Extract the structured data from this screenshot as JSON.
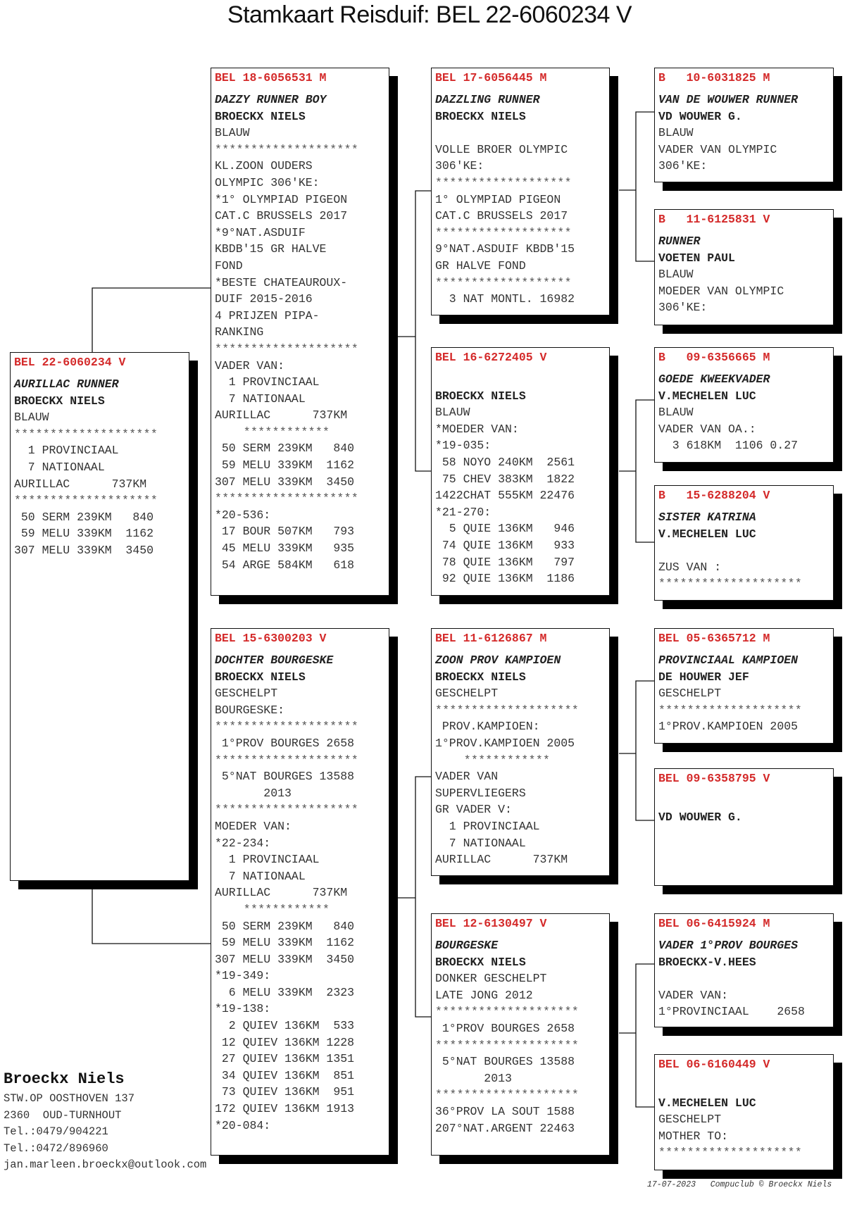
{
  "title": "Stamkaart Reisduif: BEL 22-6060234 V",
  "boxes": [
    {
      "ring": "BEL 22-6060234 V",
      "name": "AURILLAC RUNNER",
      "breeder": "BROECKX NIELS",
      "lines": [
        "BLAUW",
        "********************",
        "  1 PROVINCIAAL",
        "  7 NATIONAAL",
        "AURILLAC      737KM",
        "********************",
        " 50 SERM 239KM   840",
        " 59 MELU 339KM  1162",
        "307 MELU 339KM  3450"
      ]
    },
    {
      "ring": "BEL 18-6056531 M",
      "name": "DAZZY RUNNER BOY",
      "breeder": "BROECKX NIELS",
      "lines": [
        "BLAUW",
        "********************",
        "KL.ZOON OUDERS",
        "OLYMPIC 306'KE:",
        "*1° OLYMPIAD PIGEON",
        "CAT.C BRUSSELS 2017",
        "*9°NAT.ASDUIF",
        "KBDB'15 GR HALVE",
        "FOND",
        "*BESTE CHATEAUROUX-",
        "DUIF 2015-2016",
        "4 PRIJZEN PIPA-",
        "RANKING",
        "********************",
        "VADER VAN:",
        "  1 PROVINCIAAL",
        "  7 NATIONAAL",
        "AURILLAC      737KM",
        "    ************",
        " 50 SERM 239KM   840",
        " 59 MELU 339KM  1162",
        "307 MELU 339KM  3450",
        "********************",
        "*20-536:",
        " 17 BOUR 507KM   793",
        " 45 MELU 339KM   935",
        " 54 ARGE 584KM   618"
      ]
    },
    {
      "ring": "BEL 15-6300203 V",
      "name": "DOCHTER BOURGESKE",
      "breeder": "BROECKX NIELS",
      "lines": [
        "GESCHELPT",
        "BOURGESKE:",
        "********************",
        " 1°PROV BOURGES 2658",
        "********************",
        " 5°NAT BOURGES 13588",
        "       2013",
        "********************",
        "MOEDER VAN:",
        "*22-234:",
        "  1 PROVINCIAAL",
        "  7 NATIONAAL",
        "AURILLAC      737KM",
        "    ************",
        " 50 SERM 239KM   840",
        " 59 MELU 339KM  1162",
        "307 MELU 339KM  3450",
        "*19-349:",
        "  6 MELU 339KM  2323",
        "*19-138:",
        "  2 QUIEV 136KM  533",
        " 12 QUIEV 136KM 1228",
        " 27 QUIEV 136KM 1351",
        " 34 QUIEV 136KM  851",
        " 73 QUIEV 136KM  951",
        "172 QUIEV 136KM 1913",
        "*20-084:"
      ]
    },
    {
      "ring": "BEL 17-6056445 M",
      "name": "DAZZLING RUNNER",
      "breeder": "BROECKX NIELS",
      "lines": [
        "",
        "VOLLE BROER OLYMPIC",
        "306'KE:",
        "*******************",
        "1° OLYMPIAD PIGEON",
        "CAT.C BRUSSELS 2017",
        "*******************",
        "9°NAT.ASDUIF KBDB'15",
        "GR HALVE FOND",
        "*******************",
        "  3 NAT MONTL. 16982"
      ]
    },
    {
      "ring": "BEL 16-6272405 V",
      "name": "",
      "breeder": "BROECKX NIELS",
      "lines": [
        "BLAUW",
        "*MOEDER VAN:",
        "*19-035:",
        " 58 NOYO 240KM  2561",
        " 75 CHEV 383KM  1822",
        "1422CHAT 555KM 22476",
        "*21-270:",
        "  5 QUIE 136KM   946",
        " 74 QUIE 136KM   933",
        " 78 QUIE 136KM   797",
        " 92 QUIE 136KM  1186"
      ]
    },
    {
      "ring": "BEL 11-6126867 M",
      "name": "ZOON PROV KAMPIOEN",
      "breeder": "BROECKX NIELS",
      "lines": [
        "GESCHELPT",
        "********************",
        " PROV.KAMPIOEN:",
        "1°PROV.KAMPIOEN 2005",
        "    ************",
        "VADER VAN",
        "SUPERVLIEGERS",
        "GR VADER V:",
        "  1 PROVINCIAAL",
        "  7 NATIONAAL",
        "AURILLAC      737KM"
      ]
    },
    {
      "ring": "BEL 12-6130497 V",
      "name": "BOURGESKE",
      "breeder": "BROECKX NIELS",
      "lines": [
        "DONKER GESCHELPT",
        "LATE JONG 2012",
        "********************",
        " 1°PROV BOURGES 2658",
        "********************",
        " 5°NAT BOURGES 13588",
        "       2013",
        "********************",
        "36°PROV LA SOUT 1588",
        "207°NAT.ARGENT 22463"
      ]
    },
    {
      "ring": "B   10-6031825 M",
      "name": "VAN DE WOUWER RUNNER",
      "breeder": "VD WOUWER G.",
      "lines": [
        "BLAUW",
        "VADER VAN OLYMPIC",
        "306'KE:"
      ]
    },
    {
      "ring": "B   11-6125831 V",
      "name": "RUNNER",
      "breeder": "VOETEN PAUL",
      "lines": [
        "BLAUW",
        "MOEDER VAN OLYMPIC",
        "306'KE:"
      ]
    },
    {
      "ring": "B   09-6356665 M",
      "name": "GOEDE KWEEKVADER",
      "breeder": "V.MECHELEN LUC",
      "lines": [
        "BLAUW",
        "VADER VAN OA.:",
        "  3 618KM  1106 0.27"
      ]
    },
    {
      "ring": "B   15-6288204 V",
      "name": "SISTER KATRINA",
      "breeder": "V.MECHELEN LUC",
      "lines": [
        "",
        "ZUS VAN :",
        "********************"
      ]
    },
    {
      "ring": "BEL 05-6365712 M",
      "name": "PROVINCIAAL KAMPIOEN",
      "breeder": "DE HOUWER JEF",
      "lines": [
        "GESCHELPT",
        "********************",
        "1°PROV.KAMPIOEN 2005"
      ]
    },
    {
      "ring": "BEL 09-6358795 V",
      "name": "",
      "breeder": "VD WOUWER G.",
      "lines": []
    },
    {
      "ring": "BEL 06-6415924 M",
      "name": "VADER 1°PROV BOURGES",
      "breeder": "BROECKX-V.HEES",
      "lines": [
        "",
        "VADER VAN:",
        "1°PROVINCIAAL    2658"
      ]
    },
    {
      "ring": "BEL 06-6160449 V",
      "name": "",
      "breeder": "V.MECHELEN LUC",
      "lines": [
        "GESCHELPT",
        "MOTHER TO:",
        "********************"
      ]
    }
  ],
  "owner": {
    "name": "Broeckx Niels",
    "lines": [
      "STW.OP OOSTHOVEN 137",
      "2360  OUD-TURNHOUT",
      "Tel.:0479/904221",
      "Tel.:0472/896960",
      "jan.marleen.broeckx@outlook.com"
    ]
  },
  "footer": "17-07-2023   Compuclub © Broeckx Niels",
  "colors": {
    "ring": "#d42a2a",
    "shadow": "#000000"
  }
}
